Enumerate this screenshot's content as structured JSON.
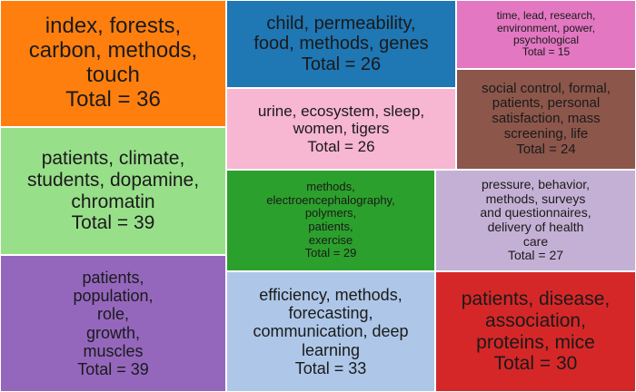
{
  "chart_data": {
    "type": "treemap",
    "total_prefix": "Total = ",
    "tiles": [
      {
        "labels": "index, forests, carbon, methods, touch",
        "lines": [
          "index, forests,",
          "carbon, methods,",
          "touch"
        ],
        "value": 36,
        "color": "#ff7f0e"
      },
      {
        "labels": "patients, climate, students, dopamine, chromatin",
        "lines": [
          "patients, climate,",
          "students, dopamine,",
          "chromatin"
        ],
        "value": 39,
        "color": "#98df8a"
      },
      {
        "labels": "patients, population, role, growth, muscles",
        "lines": [
          "patients,",
          "population,",
          "role,",
          "growth,",
          "muscles"
        ],
        "value": 39,
        "color": "#9467bd"
      },
      {
        "labels": "child, permeability, food, methods, genes",
        "lines": [
          "child, permeability,",
          "food, methods, genes"
        ],
        "value": 26,
        "color": "#1f77b4"
      },
      {
        "labels": "urine, ecosystem, sleep, women, tigers",
        "lines": [
          "urine, ecosystem, sleep,",
          "women, tigers"
        ],
        "value": 26,
        "color": "#f7b6d2"
      },
      {
        "labels": "methods, electroencephalography, polymers, patients, exercise",
        "lines": [
          "methods,",
          "electroencephalography,",
          "polymers,",
          "patients,",
          "exercise"
        ],
        "value": 29,
        "color": "#2ca02c"
      },
      {
        "labels": "efficiency, methods, forecasting, communication, deep learning",
        "lines": [
          "efficiency, methods,",
          "forecasting,",
          "communication, deep",
          "learning"
        ],
        "value": 33,
        "color": "#aec7e8"
      },
      {
        "labels": "time, lead, research, environment, power, psychological",
        "lines": [
          "time, lead, research,",
          "environment, power,",
          "psychological"
        ],
        "value": 15,
        "color": "#e377c2"
      },
      {
        "labels": "social control, formal, patients, personal satisfaction, mass screening, life",
        "lines": [
          "social control, formal,",
          "patients, personal",
          "satisfaction, mass",
          "screening, life"
        ],
        "value": 24,
        "color": "#8c564b"
      },
      {
        "labels": "pressure, behavior, methods, surveys and questionnaires, delivery of health care",
        "lines": [
          "pressure, behavior,",
          "methods, surveys",
          "and questionnaires,",
          "delivery of health",
          "care"
        ],
        "value": 27,
        "color": "#c5b0d5"
      },
      {
        "labels": "patients, disease, association, proteins, mice",
        "lines": [
          "patients, disease,",
          "association,",
          "proteins, mice"
        ],
        "value": 30,
        "color": "#d62728"
      }
    ]
  }
}
